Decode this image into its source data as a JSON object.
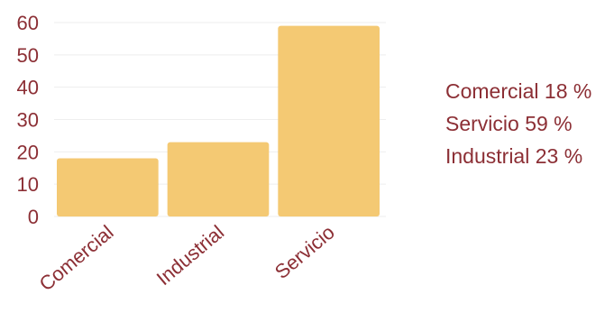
{
  "chart_data": {
    "type": "bar",
    "categories": [
      "Comercial",
      "Industrial",
      "Servicio"
    ],
    "values": [
      18,
      23,
      59
    ],
    "ylim": [
      0,
      60
    ],
    "yticks": [
      0,
      10,
      20,
      30,
      40,
      50,
      60
    ],
    "grid": true,
    "legend_position": "right",
    "colors": {
      "bar": "#f4c973",
      "text": "#8c2f35",
      "grid": "#eeeeee"
    }
  },
  "legend": {
    "items": [
      {
        "label": "Comercial",
        "value": "18 %"
      },
      {
        "label": "Servicio",
        "value": "59 %"
      },
      {
        "label": "Industrial",
        "value": "23 %"
      }
    ]
  }
}
